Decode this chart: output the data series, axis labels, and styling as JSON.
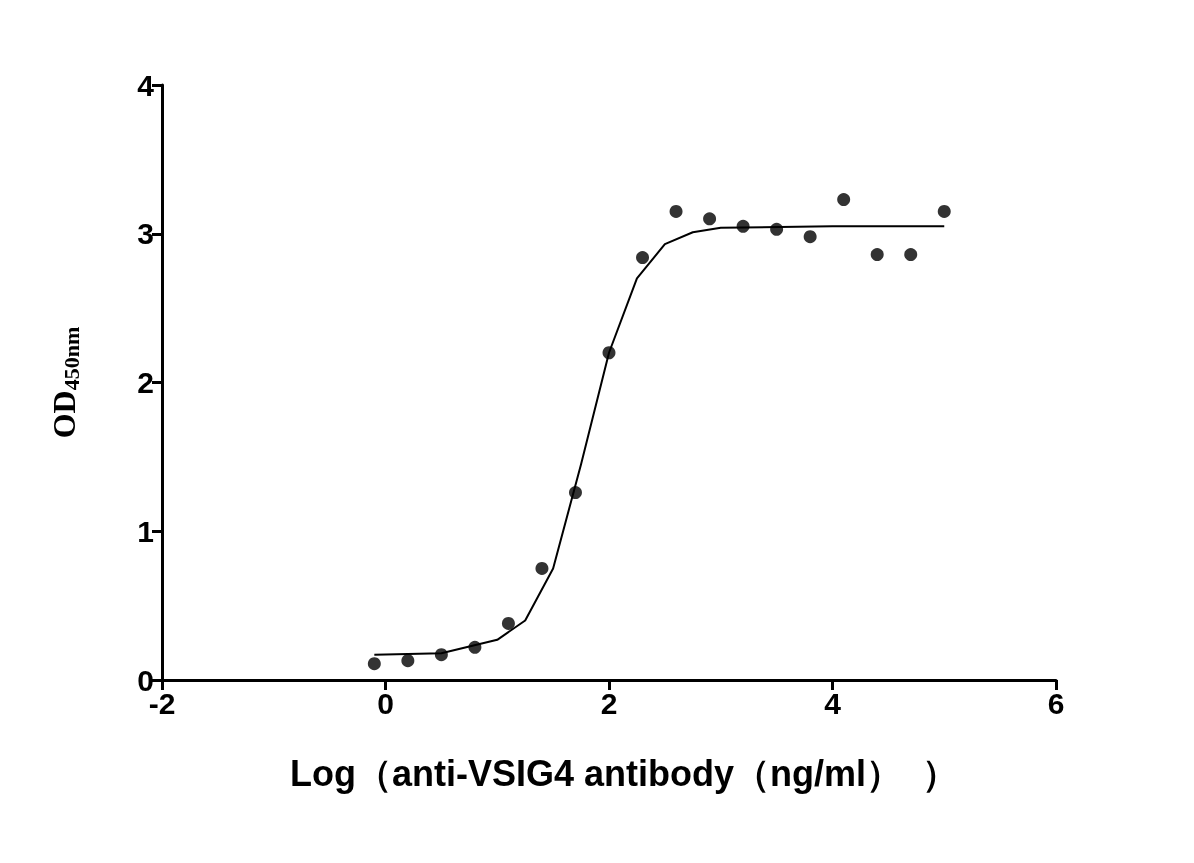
{
  "chart_data": {
    "type": "scatter",
    "xlabel": "Log（anti-VSIG4 antibody（ng/ml）  ）",
    "ylabel": "OD$_{450nm}$",
    "xlim": [
      -2,
      6
    ],
    "xticks": [
      -2,
      0,
      2,
      4,
      6
    ],
    "ylim": [
      0,
      4
    ],
    "yticks": [
      0,
      1,
      2,
      3,
      4
    ],
    "grid": false,
    "series": [
      {
        "color": "#000000",
        "marker": "circle",
        "x": [
          -0.1,
          0.2,
          0.5,
          0.8,
          1.1,
          1.4,
          1.7,
          2.0,
          2.3,
          2.6,
          2.9,
          3.2,
          3.5,
          3.8,
          4.1,
          4.4,
          4.7,
          5.0
        ],
        "values": [
          0.11,
          0.13,
          0.17,
          0.22,
          0.38,
          0.75,
          1.26,
          2.2,
          2.84,
          3.15,
          3.1,
          3.05,
          3.03,
          2.98,
          3.23,
          2.86,
          2.86,
          3.15
        ]
      },
      {
        "type": "line",
        "color": "#000000",
        "marker": "none",
        "line_style": "solid",
        "x": [
          -0.1,
          0.5,
          1.0,
          1.25,
          1.5,
          1.75,
          2.0,
          2.25,
          2.5,
          2.75,
          3.0,
          4.0,
          5.0
        ],
        "values": [
          0.17,
          0.18,
          0.27,
          0.4,
          0.75,
          1.45,
          2.2,
          2.7,
          2.93,
          3.01,
          3.04,
          3.05,
          3.05
        ]
      }
    ]
  }
}
